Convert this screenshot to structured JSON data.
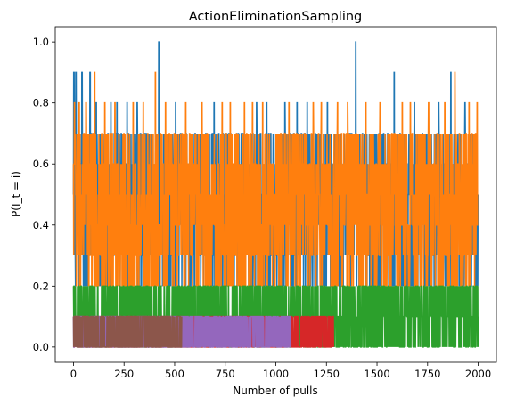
{
  "chart_data": {
    "type": "line",
    "title": "ActionEliminationSampling",
    "xlabel": "Number of pulls",
    "ylabel": "P(I_t = i)",
    "xlim": [
      -90,
      2090
    ],
    "ylim": [
      -0.05,
      1.05
    ],
    "x_ticks": [
      0,
      250,
      500,
      750,
      1000,
      1250,
      1500,
      1750,
      2000
    ],
    "y_ticks": [
      0.0,
      0.2,
      0.4,
      0.6,
      0.8,
      1.0
    ],
    "x_tick_labels": [
      "0",
      "250",
      "500",
      "750",
      "1000",
      "1250",
      "1500",
      "1750",
      "2000"
    ],
    "y_tick_labels": [
      "0.0",
      "0.2",
      "0.4",
      "0.6",
      "0.8",
      "1.0"
    ],
    "grid": false,
    "series": [
      {
        "color": "#1f77b4",
        "segments": [
          [
            0,
            2000
          ]
        ],
        "values": [
          0.2,
          0.3,
          0.4,
          0.5,
          0.6,
          0.7
        ],
        "peaks": [
          [
            2,
            0.9
          ],
          [
            12,
            0.9
          ],
          [
            42,
            0.9
          ],
          [
            82,
            0.9
          ],
          [
            112,
            0.8
          ],
          [
            185,
            0.8
          ],
          [
            215,
            0.8
          ],
          [
            265,
            0.8
          ],
          [
            315,
            0.8
          ],
          [
            422,
            1.0
          ],
          [
            505,
            0.8
          ],
          [
            695,
            0.8
          ],
          [
            905,
            0.8
          ],
          [
            955,
            0.8
          ],
          [
            1045,
            0.8
          ],
          [
            1105,
            0.8
          ],
          [
            1155,
            0.8
          ],
          [
            1255,
            0.8
          ],
          [
            1395,
            1.0
          ],
          [
            1585,
            0.9
          ],
          [
            1685,
            0.8
          ],
          [
            1805,
            0.8
          ],
          [
            1865,
            0.9
          ],
          [
            1935,
            0.8
          ]
        ]
      },
      {
        "color": "#ff7f0e",
        "segments": [
          [
            0,
            2000
          ]
        ],
        "values": [
          0.2,
          0.3,
          0.4,
          0.5,
          0.6,
          0.7
        ],
        "peaks": [
          [
            5,
            0.8
          ],
          [
            28,
            0.8
          ],
          [
            62,
            0.8
          ],
          [
            105,
            0.9
          ],
          [
            155,
            0.8
          ],
          [
            205,
            0.8
          ],
          [
            295,
            0.8
          ],
          [
            345,
            0.8
          ],
          [
            405,
            0.9
          ],
          [
            455,
            0.8
          ],
          [
            555,
            0.8
          ],
          [
            635,
            0.8
          ],
          [
            735,
            0.8
          ],
          [
            775,
            0.8
          ],
          [
            845,
            0.8
          ],
          [
            885,
            0.8
          ],
          [
            935,
            0.8
          ],
          [
            1065,
            0.8
          ],
          [
            1185,
            0.8
          ],
          [
            1225,
            0.8
          ],
          [
            1305,
            0.8
          ],
          [
            1355,
            0.8
          ],
          [
            1445,
            0.8
          ],
          [
            1515,
            0.8
          ],
          [
            1625,
            0.8
          ],
          [
            1665,
            0.8
          ],
          [
            1755,
            0.8
          ],
          [
            1835,
            0.8
          ],
          [
            1885,
            0.9
          ],
          [
            1955,
            0.8
          ],
          [
            1995,
            0.8
          ]
        ]
      },
      {
        "color": "#2ca02c",
        "segments": [
          [
            0,
            2000
          ]
        ],
        "values": [
          0.0,
          0.1,
          0.2
        ],
        "peaks": []
      },
      {
        "color": "#d62728",
        "segments": [
          [
            0,
            1285
          ]
        ],
        "values": [
          0.0,
          0.1
        ],
        "peaks": []
      },
      {
        "color": "#9467bd",
        "segments": [
          [
            0,
            1075
          ]
        ],
        "values": [
          0.0,
          0.1
        ],
        "peaks": []
      },
      {
        "color": "#8c564b",
        "segments": [
          [
            0,
            535
          ]
        ],
        "values": [
          0.0,
          0.1
        ],
        "peaks": []
      }
    ]
  }
}
